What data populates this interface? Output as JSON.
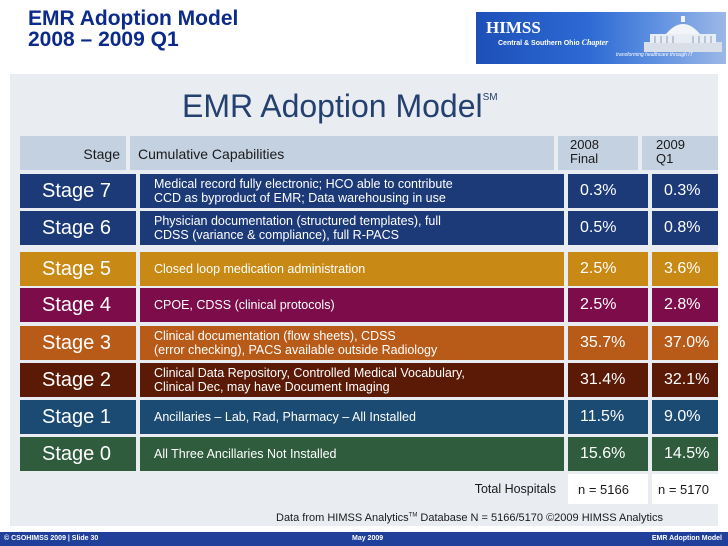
{
  "title": {
    "line1": "EMR Adoption Model",
    "line2": "2008 – 2009 Q1"
  },
  "logo": {
    "brand": "HIMSS",
    "chapter": "Central & Southern Ohio",
    "chapter_word": "Chapter",
    "tagline": "transforming healthcare through IT"
  },
  "panel": {
    "heading": "EMR Adoption Model",
    "heading_mark": "SM",
    "columns": {
      "stage": "Stage",
      "capabilities": "Cumulative Capabilities",
      "y2008_l1": "2008",
      "y2008_l2": "Final",
      "y2009_l1": "2009",
      "y2009_l2": "Q1"
    },
    "rows": [
      {
        "stage": "Stage 7",
        "cap_l1": "Medical record fully electronic; HCO able to contribute",
        "cap_l2": "CCD as byproduct of EMR; Data warehousing in use",
        "y2008": "0.3%",
        "y2009": "0.3%"
      },
      {
        "stage": "Stage 6",
        "cap_l1": "Physician documentation (structured templates), full",
        "cap_l2": "CDSS (variance & compliance), full R-PACS",
        "y2008": "0.5%",
        "y2009": "0.8%"
      },
      {
        "stage": "Stage 5",
        "cap_l1": "Closed loop medication administration",
        "cap_l2": "",
        "y2008": "2.5%",
        "y2009": "3.6%"
      },
      {
        "stage": "Stage 4",
        "cap_l1": "CPOE, CDSS (clinical protocols)",
        "cap_l2": "",
        "y2008": "2.5%",
        "y2009": "2.8%"
      },
      {
        "stage": "Stage 3",
        "cap_l1": "Clinical documentation (flow sheets), CDSS",
        "cap_l2": "(error checking), PACS available outside Radiology",
        "y2008": "35.7%",
        "y2009": "37.0%"
      },
      {
        "stage": "Stage 2",
        "cap_l1": "Clinical Data Repository, Controlled Medical Vocabulary,",
        "cap_l2": "Clinical Dec, may have Document Imaging",
        "y2008": "31.4%",
        "y2009": "32.1%"
      },
      {
        "stage": "Stage 1",
        "cap_l1": "Ancillaries – Lab, Rad, Pharmacy – All Installed",
        "cap_l2": "",
        "y2008": "11.5%",
        "y2009": "9.0%"
      },
      {
        "stage": "Stage 0",
        "cap_l1": "All Three Ancillaries Not Installed",
        "cap_l2": "",
        "y2008": "15.6%",
        "y2009": "14.5%"
      }
    ],
    "total": {
      "label": "Total Hospitals",
      "y2008": "n = 5166",
      "y2009": "n = 5170"
    },
    "source_pre": "Data from HIMSS Analytics",
    "source_tm": "TM",
    "source_post": " Database  N = 5166/5170 ©2009 HIMSS Analytics"
  },
  "footer": {
    "left": "© CSOHIMSS 2009   |    Slide 30",
    "middle": "May 2009",
    "right": "EMR Adoption Model"
  },
  "colors": {
    "title": "#0b2a8a",
    "stage7": "#1d3a78",
    "stage6": "#1d3a78",
    "stage5": "#c98a15",
    "stage4": "#7c0c4a",
    "stage3": "#b85a18",
    "stage2": "#5a1a06",
    "stage1": "#1b4a72",
    "stage0": "#2f5c3c",
    "footer": "#1f3f9a"
  }
}
